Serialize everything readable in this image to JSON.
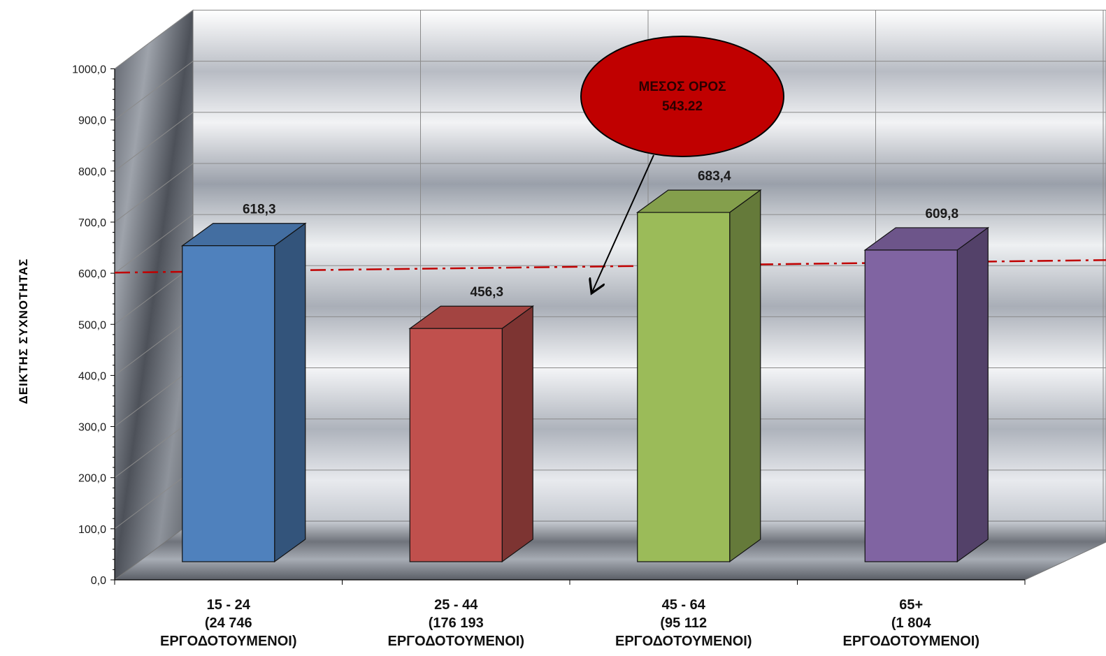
{
  "chart_data": {
    "type": "bar",
    "title": "",
    "xlabel": "",
    "ylabel": "ΔΕΙΚΤΗΣ  ΣΥΧΝΟΤΗΤΑΣ",
    "ylim": [
      0,
      1000
    ],
    "yticks": [
      "0,0",
      "100,0",
      "200,0",
      "300,0",
      "400,0",
      "500,0",
      "600,0",
      "700,0",
      "800,0",
      "900,0",
      "1000,0"
    ],
    "categories": [
      [
        "15 - 24",
        "(24 746",
        "ΕΡΓΟΔΟΤΟΥΜΕΝΟΙ)"
      ],
      [
        "25 - 44",
        "(176 193",
        "ΕΡΓΟΔΟΤΟΥΜΕΝΟΙ)"
      ],
      [
        "45 - 64",
        "(95 112",
        "ΕΡΓΟΔΟΤΟΥΜΕΝΟΙ)"
      ],
      [
        "65+",
        "(1 804",
        "ΕΡΓΟΔΟΤΟΥΜΕΝΟΙ)"
      ]
    ],
    "values": [
      618.3,
      456.3,
      683.4,
      609.8
    ],
    "value_labels": [
      "618,3",
      "456,3",
      "683,4",
      "609,8"
    ],
    "bar_colors": [
      "#4f81bd",
      "#c0504d",
      "#9bbb59",
      "#8064a2"
    ],
    "average": {
      "value": 543.22,
      "label_lines": [
        "ΜΕΣΟΣ ΟΡΟΣ",
        "543.22"
      ],
      "line_color": "#c00000",
      "callout_color": "#c00000"
    },
    "grid": true,
    "style": "3d-column"
  }
}
